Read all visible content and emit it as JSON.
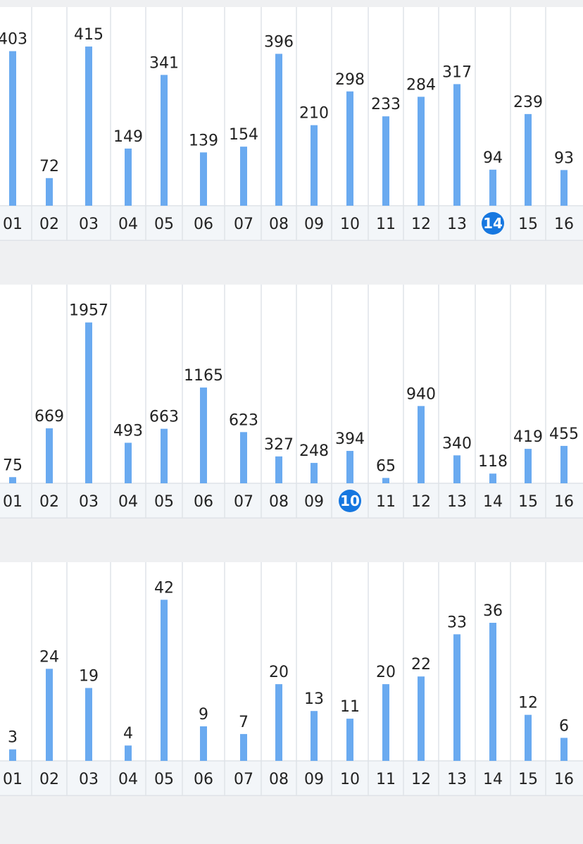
{
  "highlight_color": "#1677e0",
  "bar_color": "#6aaaf0",
  "chart_data": [
    {
      "type": "bar",
      "categories": [
        "01",
        "02",
        "03",
        "04",
        "05",
        "06",
        "07",
        "08",
        "09",
        "10",
        "11",
        "12",
        "13",
        "14",
        "15",
        "16"
      ],
      "values": [
        403,
        72,
        415,
        149,
        341,
        139,
        154,
        396,
        210,
        298,
        233,
        284,
        317,
        94,
        239,
        93
      ],
      "highlighted_category": "14",
      "ylim": [
        0,
        450
      ]
    },
    {
      "type": "bar",
      "categories": [
        "01",
        "02",
        "03",
        "04",
        "05",
        "06",
        "07",
        "08",
        "09",
        "10",
        "11",
        "12",
        "13",
        "14",
        "15",
        "16"
      ],
      "values": [
        75,
        669,
        1957,
        493,
        663,
        1165,
        623,
        327,
        248,
        394,
        65,
        940,
        340,
        118,
        419,
        455
      ],
      "highlighted_category": "10",
      "ylim": [
        0,
        2100
      ]
    },
    {
      "type": "bar",
      "categories": [
        "01",
        "02",
        "03",
        "04",
        "05",
        "06",
        "07",
        "08",
        "09",
        "10",
        "11",
        "12",
        "13",
        "14",
        "15",
        "16"
      ],
      "values": [
        3,
        24,
        19,
        4,
        42,
        9,
        7,
        20,
        13,
        11,
        20,
        22,
        33,
        36,
        12,
        6
      ],
      "highlighted_category": "",
      "ylim": [
        0,
        45
      ]
    }
  ]
}
